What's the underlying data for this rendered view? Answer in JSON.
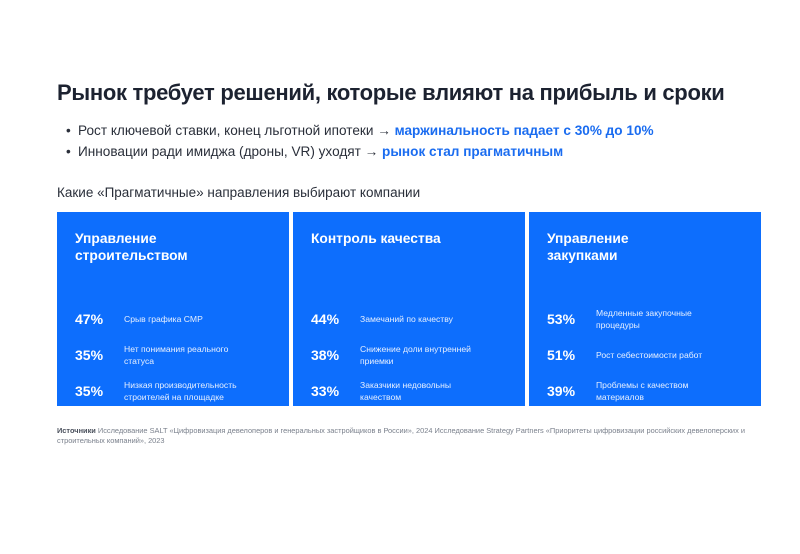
{
  "title": "Рынок требует решений, которые влияют на прибыль и сроки",
  "bullets": [
    {
      "marker": "•",
      "text": "Рост ключевой ставки, конец льготной ипотеки → ",
      "highlight": "маржинальность падает с 30% до 10%"
    },
    {
      "marker": "•",
      "text": "Инновации ради имиджа (дроны, VR) уходят → ",
      "highlight": "рынок стал прагматичным"
    }
  ],
  "subtitle": "Какие «Прагматичные» направления выбирают компании",
  "cards": [
    {
      "title": "Управление строительством",
      "metrics": [
        {
          "value": "47%",
          "label": "Срыв графика СМР"
        },
        {
          "value": "35%",
          "label": "Нет понимания реального статуса"
        },
        {
          "value": "35%",
          "label": "Низкая производительность строителей на площадке"
        }
      ]
    },
    {
      "title": "Контроль качества",
      "metrics": [
        {
          "value": "44%",
          "label": "Замечаний по качеству"
        },
        {
          "value": "38%",
          "label": "Снижение доли внутренней приемки"
        },
        {
          "value": "33%",
          "label": "Заказчики недовольны качеством"
        }
      ]
    },
    {
      "title": "Управление закупками",
      "metrics": [
        {
          "value": "53%",
          "label": "Медленные закупочные процедуры"
        },
        {
          "value": "51%",
          "label": "Рост себестоимости работ"
        },
        {
          "value": "39%",
          "label": "Проблемы с качеством материалов"
        }
      ]
    }
  ],
  "sources": {
    "label": "Источники",
    "text": " Исследование SALT «Цифровизация девелоперов и генеральных застройщиков в России», 2024  Исследование Strategy Partners «Приоритеты цифровизации российских девелоперских и строительных компаний», 2023"
  },
  "colors": {
    "card_background": "#0d6efd",
    "highlight": "#1a6cf0",
    "title": "#1c2230"
  }
}
